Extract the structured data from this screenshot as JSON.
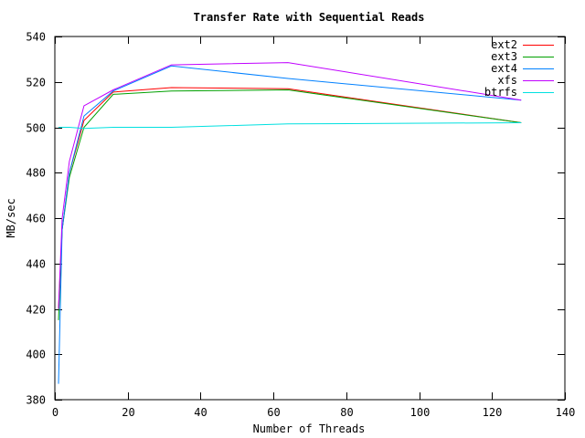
{
  "chart_data": {
    "type": "line",
    "title": "Transfer Rate with Sequential Reads",
    "xlabel": "Number of Threads",
    "ylabel": "MB/sec",
    "xlim": [
      0,
      140
    ],
    "ylim": [
      380,
      540
    ],
    "xticks": [
      0,
      20,
      40,
      60,
      80,
      100,
      120,
      140
    ],
    "yticks": [
      380,
      400,
      420,
      440,
      460,
      480,
      500,
      520,
      540
    ],
    "grid": false,
    "legend_position": "top-right",
    "x": [
      1,
      2,
      4,
      8,
      16,
      32,
      64,
      128
    ],
    "series": [
      {
        "name": "ext2",
        "color": "#ff0000",
        "values": [
          420,
          455,
          480,
          503,
          515.5,
          517.5,
          517,
          502
        ]
      },
      {
        "name": "ext3",
        "color": "#00a000",
        "values": [
          415,
          455,
          478,
          500,
          514.5,
          516,
          516.5,
          502
        ]
      },
      {
        "name": "ext4",
        "color": "#0080ff",
        "values": [
          387,
          455,
          480,
          505,
          516,
          527,
          521.5,
          512
        ]
      },
      {
        "name": "xfs",
        "color": "#c000ff",
        "values": [
          420,
          460,
          485,
          509.5,
          516.5,
          527.5,
          528.5,
          512
        ]
      },
      {
        "name": "btrfs",
        "color": "#00e0e0",
        "values": [
          500,
          500,
          500,
          499.5,
          500,
          500,
          501.5,
          502
        ]
      }
    ]
  }
}
